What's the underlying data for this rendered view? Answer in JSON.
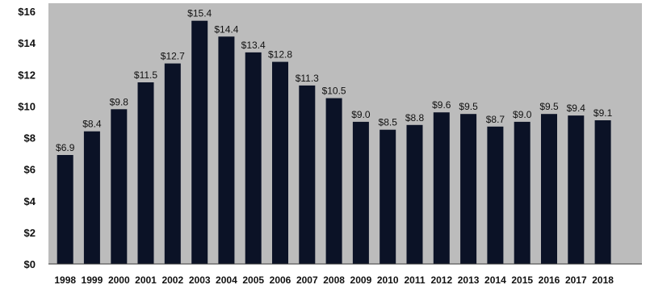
{
  "chart_data": {
    "type": "bar",
    "categories": [
      "1998",
      "1999",
      "2000",
      "2001",
      "2002",
      "2003",
      "2004",
      "2005",
      "2006",
      "2007",
      "2008",
      "2009",
      "2010",
      "2011",
      "2012",
      "2013",
      "2014",
      "2015",
      "2016",
      "2017",
      "2018"
    ],
    "values": [
      6.9,
      8.4,
      9.8,
      11.5,
      12.7,
      15.4,
      14.4,
      13.4,
      12.8,
      11.3,
      10.5,
      9.0,
      8.5,
      8.8,
      9.6,
      9.5,
      8.7,
      9.0,
      9.5,
      9.4,
      9.1
    ],
    "data_labels": [
      "$6.9",
      "$8.4",
      "$9.8",
      "$11.5",
      "$12.7",
      "$15.4",
      "$14.4",
      "$13.4",
      "$12.8",
      "$11.3",
      "$10.5",
      "$9.0",
      "$8.5",
      "$8.8",
      "$9.6",
      "$9.5",
      "$8.7",
      "$9.0",
      "$9.5",
      "$9.4",
      "$9.1"
    ],
    "yticks": [
      0,
      2,
      4,
      6,
      8,
      10,
      12,
      14,
      16
    ],
    "ytick_labels": [
      "$0",
      "$2",
      "$4",
      "$6",
      "$8",
      "$10",
      "$12",
      "$14",
      "$16"
    ],
    "ylim": [
      0,
      16
    ],
    "title": "",
    "xlabel": "",
    "ylabel": "",
    "grid": false,
    "legend": "none",
    "colors": {
      "bar": "#0b1226",
      "plot_background": "#bcbcbc",
      "page_background": "#ffffff",
      "axis": "#3a3a3a",
      "text": "#111111"
    }
  }
}
